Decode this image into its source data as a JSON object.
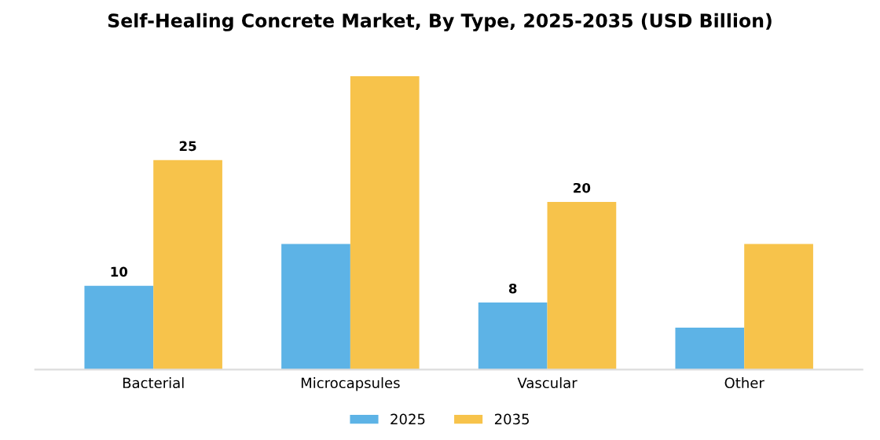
{
  "chart_data": {
    "type": "bar",
    "title": "Self-Healing Concrete Market, By Type, 2025-2035 (USD Billion)",
    "categories": [
      "Bacterial",
      "Microcapsules",
      "Vascular",
      "Other"
    ],
    "series": [
      {
        "name": "2025",
        "color": "#5db3e6",
        "values": [
          10,
          15,
          8,
          5
        ],
        "value_labels": [
          "10",
          null,
          "8",
          null
        ]
      },
      {
        "name": "2035",
        "color": "#f7c34b",
        "values": [
          25,
          35,
          20,
          15
        ],
        "value_labels": [
          "25",
          null,
          "20",
          null
        ]
      }
    ],
    "legend": "bottom",
    "grid": false
  }
}
